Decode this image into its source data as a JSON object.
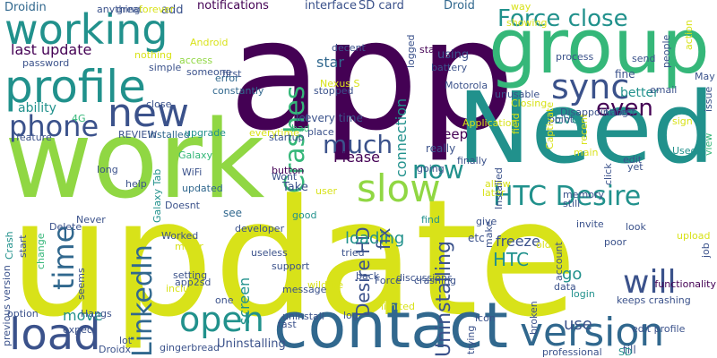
{
  "colors": {
    "purple": "#440154",
    "blue_violet": "#3b528b",
    "blue": "#31688e",
    "teal": "#21918c",
    "green": "#35b779",
    "light_green": "#90d743",
    "yellow": "#d8e219",
    "bright_yellow": "#e7e419"
  },
  "words": [
    "app",
    "update",
    "work",
    "Need",
    "group",
    "contact",
    "working",
    "profile",
    "new",
    "Force close",
    "sync",
    "version",
    "load",
    "open",
    "phone",
    "slow",
    "HTC Desire",
    "LinkedIn",
    "much",
    "even",
    "now",
    "time",
    "Crashes",
    "will",
    "last update",
    "Uninstalling",
    "Desire HD",
    "Please",
    "loading",
    "keep",
    "freeze",
    "Evo",
    "HTC",
    "better",
    "fix",
    "use",
    "screen",
    "move",
    "go",
    "connection",
    "star",
    "ability",
    "notifications",
    "add",
    "interface",
    "SD card",
    "Droid",
    "Droidin",
    "password",
    "way",
    "fine",
    "recent",
    "stopped",
    "error",
    "Android",
    "access",
    "stay",
    "using",
    "Galaxy",
    "every time",
    "let",
    "installed",
    "feature",
    "bad",
    "really",
    "upgrade",
    "unusable",
    "Galaxy Tab",
    "WiFi",
    "updated",
    "4G",
    "long",
    "see",
    "find",
    "button",
    "Take",
    "Wont",
    "going",
    "give",
    "still",
    "invite",
    "poor",
    "data",
    "edit",
    "etc",
    "Worked",
    "support",
    "good",
    "setting",
    "app2sd",
    "one",
    "make",
    "till",
    "login",
    "Uninstalling",
    "gingerbread",
    "Droidx",
    "option",
    "Hangs",
    "expect",
    "Crash",
    "start",
    "change",
    "functionality",
    "keeps crashing",
    "broken",
    "SD",
    "Force",
    "log",
    "uninstall",
    "fast",
    "lot",
    "limited",
    "discussions",
    "account",
    "view",
    "yet",
    "Used",
    "edit profile",
    "professional",
    "trying",
    "icon",
    "Nexus S",
    "Motorola",
    "Closing",
    "showing",
    "great",
    "forever",
    "anything",
    "nothing",
    "someone",
    "simple",
    "close",
    "first",
    "constantly",
    "everytime",
    "startup",
    "place",
    "REVIEW",
    "help",
    "Never",
    "seems",
    "include",
    "major",
    "developer",
    "useless",
    "wildfire",
    "message",
    "tried",
    "back",
    "crashing",
    "allow",
    "point",
    "email",
    "May",
    "issue",
    "Latest",
    "sign",
    "look",
    "upload",
    "job",
    "click",
    "memory",
    "later",
    "finally",
    "Application",
    "decent",
    "battery",
    "process",
    "send",
    "people",
    "action",
    "logged",
    "main",
    "field",
    "Captivate",
    "Disappointing",
    "old",
    "previous version",
    "Delete",
    "Doesnt",
    "Installed",
    "user",
    "X",
    "every action",
    "UI",
    "Fc"
  ]
}
